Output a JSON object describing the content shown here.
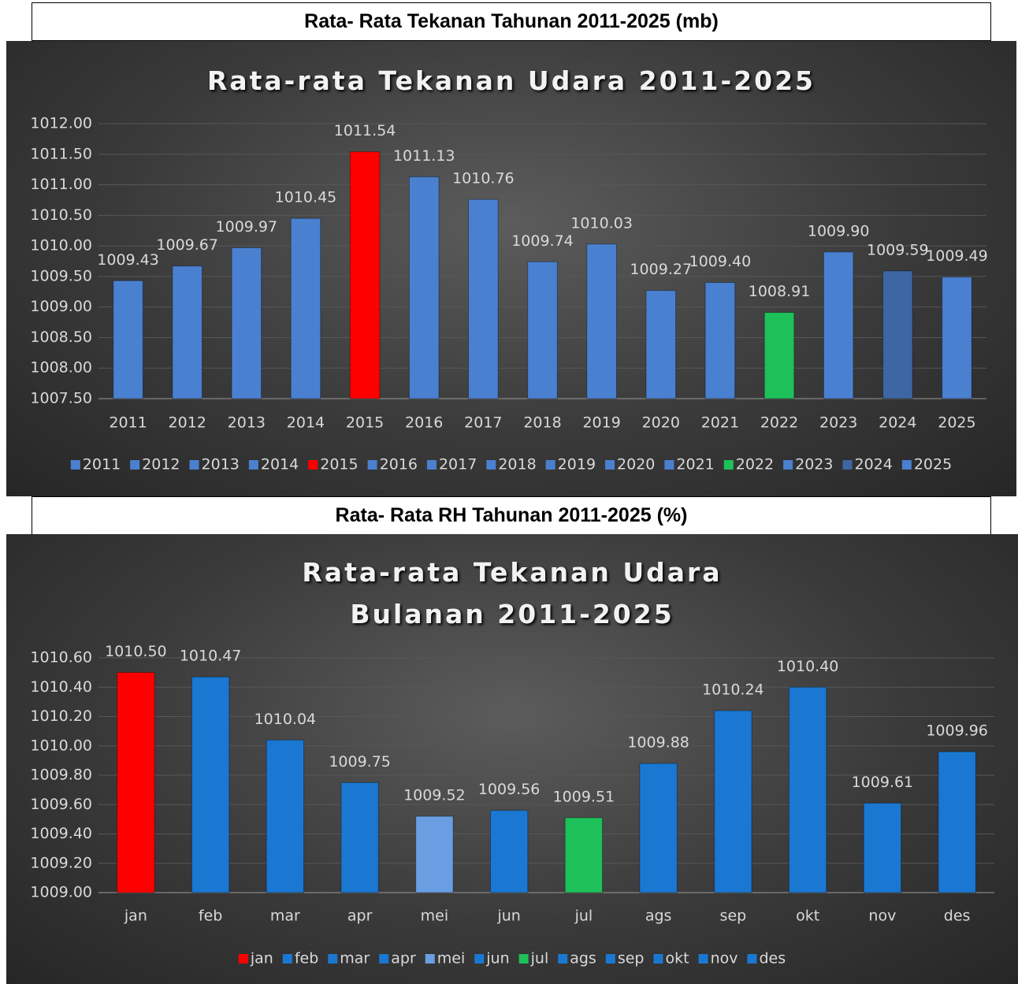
{
  "chart_data": [
    {
      "type": "bar",
      "heading": "Rata- Rata Tekanan Tahunan 2011-2025 (mb)",
      "title": "Rata-rata Tekanan Udara 2011-2025",
      "categories": [
        "2011",
        "2012",
        "2013",
        "2014",
        "2015",
        "2016",
        "2017",
        "2018",
        "2019",
        "2020",
        "2021",
        "2022",
        "2023",
        "2024",
        "2025"
      ],
      "values": [
        1009.43,
        1009.67,
        1009.97,
        1010.45,
        1011.54,
        1011.13,
        1010.76,
        1009.74,
        1010.03,
        1009.27,
        1009.4,
        1008.91,
        1009.9,
        1009.59,
        1009.49
      ],
      "value_labels": [
        "1009.43",
        "1009.67",
        "1009.97",
        "1010.45",
        "1011.54",
        "1011.13",
        "1010.76",
        "1009.74",
        "1010.03",
        "1009.27",
        "1009.40",
        "1008.91",
        "1009.90",
        "1009.59",
        "1009.49"
      ],
      "colors": [
        "#4a80d0",
        "#4a80d0",
        "#4a80d0",
        "#4a80d0",
        "#ff0000",
        "#4a80d0",
        "#4a80d0",
        "#4a80d0",
        "#4a80d0",
        "#4a80d0",
        "#4a80d0",
        "#1ec05a",
        "#4a80d0",
        "#3d66a3",
        "#4a80d0"
      ],
      "ylim": [
        1007.5,
        1012
      ],
      "yticks": [
        {
          "value": 1007.5,
          "label": "1007.50"
        },
        {
          "value": 1008,
          "label": "1008.00"
        },
        {
          "value": 1008.5,
          "label": "1008.50"
        },
        {
          "value": 1009,
          "label": "1009.00"
        },
        {
          "value": 1009.5,
          "label": "1009.50"
        },
        {
          "value": 1010,
          "label": "1010.00"
        },
        {
          "value": 1010.5,
          "label": "1010.50"
        },
        {
          "value": 1011,
          "label": "1011.00"
        },
        {
          "value": 1011.5,
          "label": "1011.50"
        },
        {
          "value": 1012,
          "label": "1012.00"
        }
      ],
      "grid": true,
      "legend": "bottom"
    },
    {
      "type": "bar",
      "heading": "Rata- Rata RH Tahunan 2011-2025 (%)",
      "title": "Rata-rata Tekanan Udara Bulanan 2011-2025",
      "categories": [
        "jan",
        "feb",
        "mar",
        "apr",
        "mei",
        "jun",
        "jul",
        "ags",
        "sep",
        "okt",
        "nov",
        "des"
      ],
      "values": [
        1010.5,
        1010.47,
        1010.04,
        1009.75,
        1009.52,
        1009.56,
        1009.51,
        1009.88,
        1010.24,
        1010.4,
        1009.61,
        1009.96
      ],
      "value_labels": [
        "1010.50",
        "1010.47",
        "1010.04",
        "1009.75",
        "1009.52",
        "1009.56",
        "1009.51",
        "1009.88",
        "1010.24",
        "1010.40",
        "1009.61",
        "1009.96"
      ],
      "colors": [
        "#ff0000",
        "#1a78d2",
        "#1a78d2",
        "#1a78d2",
        "#6a9ee2",
        "#1a78d2",
        "#1ec05a",
        "#1a78d2",
        "#1a78d2",
        "#1a78d2",
        "#1a78d2",
        "#1a78d2"
      ],
      "ylim": [
        1009,
        1010.6
      ],
      "yticks": [
        {
          "value": 1009,
          "label": "1009.00"
        },
        {
          "value": 1009.2,
          "label": "1009.20"
        },
        {
          "value": 1009.4,
          "label": "1009.40"
        },
        {
          "value": 1009.6,
          "label": "1009.60"
        },
        {
          "value": 1009.8,
          "label": "1009.80"
        },
        {
          "value": 1010,
          "label": "1010.00"
        },
        {
          "value": 1010.2,
          "label": "1010.20"
        },
        {
          "value": 1010.4,
          "label": "1010.40"
        },
        {
          "value": 1010.6,
          "label": "1010.60"
        }
      ],
      "grid": true,
      "legend": "bottom"
    }
  ]
}
